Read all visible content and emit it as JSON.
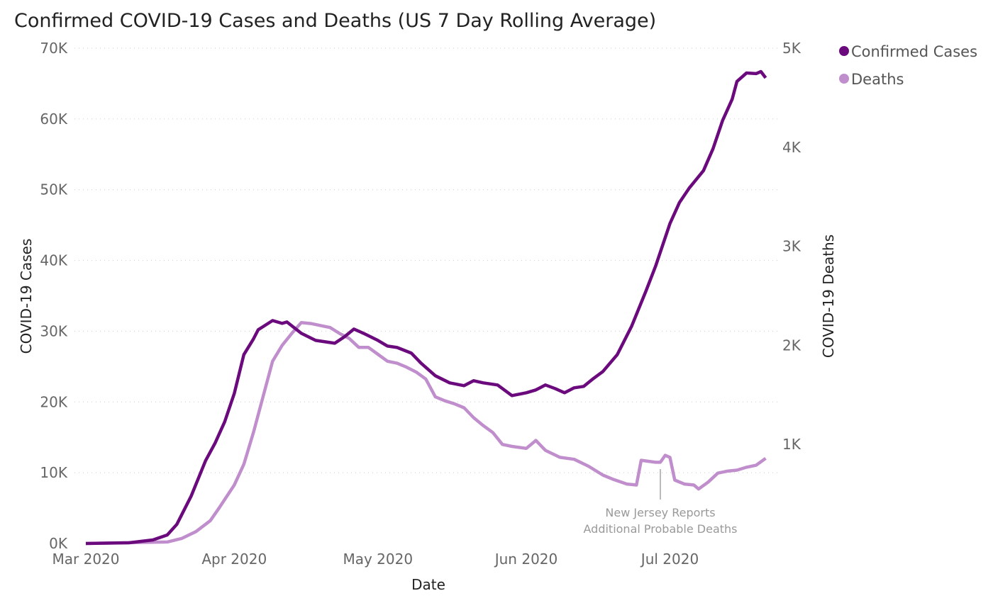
{
  "chart_data": {
    "type": "line",
    "title": "Confirmed COVID-19 Cases and Deaths (US 7 Day Rolling Average)",
    "xlabel": "Date",
    "ylabel": "COVID-19 Cases",
    "y2label": "COVID-19 Deaths",
    "xticks": [
      "Mar 2020",
      "Apr 2020",
      "May 2020",
      "Jun 2020",
      "Jul 2020"
    ],
    "xtick_dates": [
      "2020-03-01",
      "2020-04-01",
      "2020-05-01",
      "2020-06-01",
      "2020-07-01"
    ],
    "yticks": [
      "0K",
      "10K",
      "20K",
      "30K",
      "40K",
      "50K",
      "60K",
      "70K"
    ],
    "y2ticks": [
      "1K",
      "2K",
      "3K",
      "4K",
      "5K"
    ],
    "ylim": [
      0,
      70000
    ],
    "y2lim": [
      0,
      5000
    ],
    "grid": true,
    "legend_position": "top-right",
    "series": [
      {
        "name": "Confirmed Cases",
        "axis": "left",
        "color": "#6B0A7D",
        "points": [
          [
            "2020-03-01",
            0
          ],
          [
            "2020-03-10",
            100
          ],
          [
            "2020-03-15",
            500
          ],
          [
            "2020-03-18",
            1200
          ],
          [
            "2020-03-20",
            2700
          ],
          [
            "2020-03-23",
            6700
          ],
          [
            "2020-03-26",
            11700
          ],
          [
            "2020-03-28",
            14200
          ],
          [
            "2020-03-30",
            17200
          ],
          [
            "2020-04-01",
            21200
          ],
          [
            "2020-04-03",
            26700
          ],
          [
            "2020-04-05",
            28900
          ],
          [
            "2020-04-06",
            30200
          ],
          [
            "2020-04-09",
            31500
          ],
          [
            "2020-04-11",
            31100
          ],
          [
            "2020-04-12",
            31300
          ],
          [
            "2020-04-15",
            29700
          ],
          [
            "2020-04-18",
            28700
          ],
          [
            "2020-04-20",
            28500
          ],
          [
            "2020-04-22",
            28300
          ],
          [
            "2020-04-24",
            29200
          ],
          [
            "2020-04-26",
            30300
          ],
          [
            "2020-04-28",
            29700
          ],
          [
            "2020-05-01",
            28700
          ],
          [
            "2020-05-03",
            27900
          ],
          [
            "2020-05-05",
            27700
          ],
          [
            "2020-05-08",
            26900
          ],
          [
            "2020-05-10",
            25500
          ],
          [
            "2020-05-13",
            23700
          ],
          [
            "2020-05-16",
            22700
          ],
          [
            "2020-05-19",
            22300
          ],
          [
            "2020-05-21",
            23000
          ],
          [
            "2020-05-23",
            22700
          ],
          [
            "2020-05-26",
            22400
          ],
          [
            "2020-05-29",
            20900
          ],
          [
            "2020-06-01",
            21300
          ],
          [
            "2020-06-03",
            21700
          ],
          [
            "2020-06-05",
            22400
          ],
          [
            "2020-06-07",
            21900
          ],
          [
            "2020-06-09",
            21300
          ],
          [
            "2020-06-11",
            22000
          ],
          [
            "2020-06-13",
            22200
          ],
          [
            "2020-06-15",
            23300
          ],
          [
            "2020-06-17",
            24300
          ],
          [
            "2020-06-20",
            26700
          ],
          [
            "2020-06-23",
            30700
          ],
          [
            "2020-06-26",
            35700
          ],
          [
            "2020-06-28",
            39200
          ],
          [
            "2020-07-01",
            45200
          ],
          [
            "2020-07-03",
            48200
          ],
          [
            "2020-07-05",
            50200
          ],
          [
            "2020-07-08",
            52700
          ],
          [
            "2020-07-10",
            55800
          ],
          [
            "2020-07-12",
            59800
          ],
          [
            "2020-07-14",
            62800
          ],
          [
            "2020-07-15",
            65300
          ],
          [
            "2020-07-17",
            66500
          ],
          [
            "2020-07-19",
            66400
          ],
          [
            "2020-07-20",
            66700
          ],
          [
            "2020-07-21",
            65800
          ]
        ]
      },
      {
        "name": "Deaths",
        "axis": "right",
        "color": "#C08ECC",
        "points": [
          [
            "2020-03-01",
            0
          ],
          [
            "2020-03-18",
            15
          ],
          [
            "2020-03-21",
            50
          ],
          [
            "2020-03-24",
            120
          ],
          [
            "2020-03-27",
            230
          ],
          [
            "2020-03-29",
            370
          ],
          [
            "2020-04-01",
            590
          ],
          [
            "2020-04-03",
            800
          ],
          [
            "2020-04-05",
            1120
          ],
          [
            "2020-04-07",
            1480
          ],
          [
            "2020-04-09",
            1840
          ],
          [
            "2020-04-11",
            2000
          ],
          [
            "2020-04-13",
            2120
          ],
          [
            "2020-04-15",
            2230
          ],
          [
            "2020-04-17",
            2220
          ],
          [
            "2020-04-19",
            2200
          ],
          [
            "2020-04-21",
            2180
          ],
          [
            "2020-04-23",
            2120
          ],
          [
            "2020-04-25",
            2070
          ],
          [
            "2020-04-27",
            1980
          ],
          [
            "2020-04-29",
            1980
          ],
          [
            "2020-05-01",
            1910
          ],
          [
            "2020-05-03",
            1840
          ],
          [
            "2020-05-05",
            1820
          ],
          [
            "2020-05-07",
            1780
          ],
          [
            "2020-05-09",
            1730
          ],
          [
            "2020-05-11",
            1660
          ],
          [
            "2020-05-13",
            1480
          ],
          [
            "2020-05-15",
            1440
          ],
          [
            "2020-05-17",
            1410
          ],
          [
            "2020-05-19",
            1370
          ],
          [
            "2020-05-21",
            1270
          ],
          [
            "2020-05-23",
            1190
          ],
          [
            "2020-05-25",
            1120
          ],
          [
            "2020-05-27",
            1000
          ],
          [
            "2020-05-29",
            980
          ],
          [
            "2020-06-01",
            960
          ],
          [
            "2020-06-03",
            1040
          ],
          [
            "2020-06-05",
            940
          ],
          [
            "2020-06-08",
            870
          ],
          [
            "2020-06-11",
            850
          ],
          [
            "2020-06-14",
            780
          ],
          [
            "2020-06-17",
            690
          ],
          [
            "2020-06-19",
            650
          ],
          [
            "2020-06-22",
            600
          ],
          [
            "2020-06-24",
            590
          ],
          [
            "2020-06-25",
            840
          ],
          [
            "2020-06-28",
            820
          ],
          [
            "2020-06-29",
            820
          ],
          [
            "2020-06-30",
            890
          ],
          [
            "2020-07-01",
            870
          ],
          [
            "2020-07-02",
            640
          ],
          [
            "2020-07-04",
            600
          ],
          [
            "2020-07-06",
            590
          ],
          [
            "2020-07-07",
            550
          ],
          [
            "2020-07-09",
            620
          ],
          [
            "2020-07-11",
            710
          ],
          [
            "2020-07-13",
            730
          ],
          [
            "2020-07-15",
            740
          ],
          [
            "2020-07-17",
            770
          ],
          [
            "2020-07-19",
            790
          ],
          [
            "2020-07-21",
            860
          ]
        ]
      }
    ],
    "annotation": {
      "date": "2020-06-29",
      "lines": [
        "New Jersey Reports",
        "Additional Probable Deaths"
      ]
    }
  }
}
